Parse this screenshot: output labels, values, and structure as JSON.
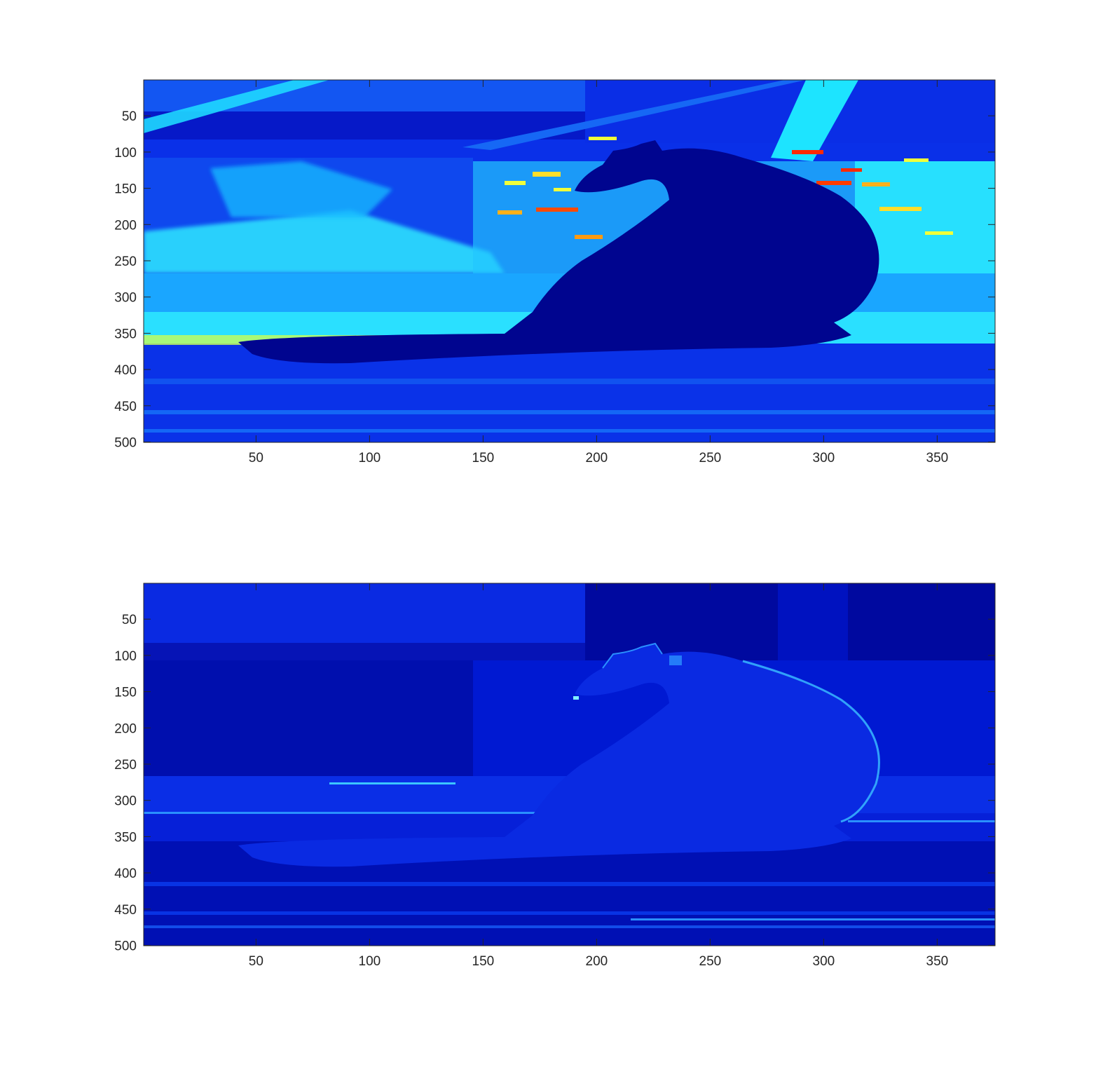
{
  "chart_data": [
    {
      "type": "heatmap",
      "colormap": "jet",
      "content": "image",
      "x": {
        "ticks": [
          50,
          100,
          150,
          200,
          250,
          300,
          350
        ],
        "range": [
          0.5,
          375.5
        ]
      },
      "y": {
        "ticks": [
          50,
          100,
          150,
          200,
          250,
          300,
          350,
          400,
          450,
          500
        ],
        "range": [
          0.5,
          500.5
        ],
        "reversed": true
      },
      "colors": {
        "dark": "#0000a8",
        "base": "#0a2ee6",
        "light": "#17c3ff",
        "cyan": "#22ffff",
        "yellow": "#f0ff3a",
        "red": "#ff2a00"
      }
    },
    {
      "type": "heatmap",
      "colormap": "jet",
      "content": "image",
      "x": {
        "ticks": [
          50,
          100,
          150,
          200,
          250,
          300,
          350
        ],
        "range": [
          0.5,
          375.5
        ]
      },
      "y": {
        "ticks": [
          50,
          100,
          150,
          200,
          250,
          300,
          350,
          400,
          450,
          500
        ],
        "range": [
          0.5,
          500.5
        ],
        "reversed": true
      },
      "colors": {
        "dark": "#00009a",
        "base": "#0019d8",
        "light": "#1f5cff",
        "cyan": "#2fb6ff"
      }
    }
  ]
}
